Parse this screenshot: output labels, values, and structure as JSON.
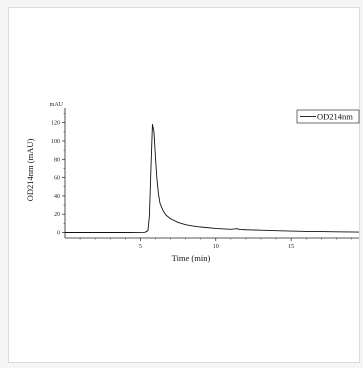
{
  "chart_data": {
    "type": "line",
    "title": "",
    "xlabel": "Time (min)",
    "ylabel": "OD214nm (mAU)",
    "y_unit_label": "mAU",
    "xlim": [
      0,
      19.5
    ],
    "ylim": [
      -6,
      136
    ],
    "x_ticks": [
      5,
      10,
      15
    ],
    "y_ticks": [
      0,
      20,
      40,
      60,
      80,
      100,
      120
    ],
    "grid": false,
    "legend": "top-right",
    "series": [
      {
        "name": "OD214nm",
        "color": "#111111",
        "x": [
          0.0,
          2.0,
          4.0,
          5.3,
          5.5,
          5.6,
          5.7,
          5.8,
          5.9,
          6.0,
          6.1,
          6.2,
          6.3,
          6.5,
          6.7,
          7.0,
          7.5,
          8.0,
          8.5,
          9.0,
          10.0,
          11.0,
          11.4,
          11.6,
          12.0,
          13.0,
          14.0,
          15.0,
          16.0,
          17.0,
          18.0,
          19.5
        ],
        "y": [
          0.0,
          0.0,
          0.0,
          0.2,
          2.0,
          18.0,
          70.0,
          118.0,
          110.0,
          82.0,
          58.0,
          42.0,
          32.0,
          24.0,
          19.0,
          15.0,
          11.0,
          8.5,
          7.0,
          6.0,
          4.5,
          3.5,
          4.2,
          3.4,
          3.0,
          2.5,
          2.0,
          1.6,
          1.2,
          1.0,
          0.8,
          0.5
        ]
      }
    ]
  }
}
